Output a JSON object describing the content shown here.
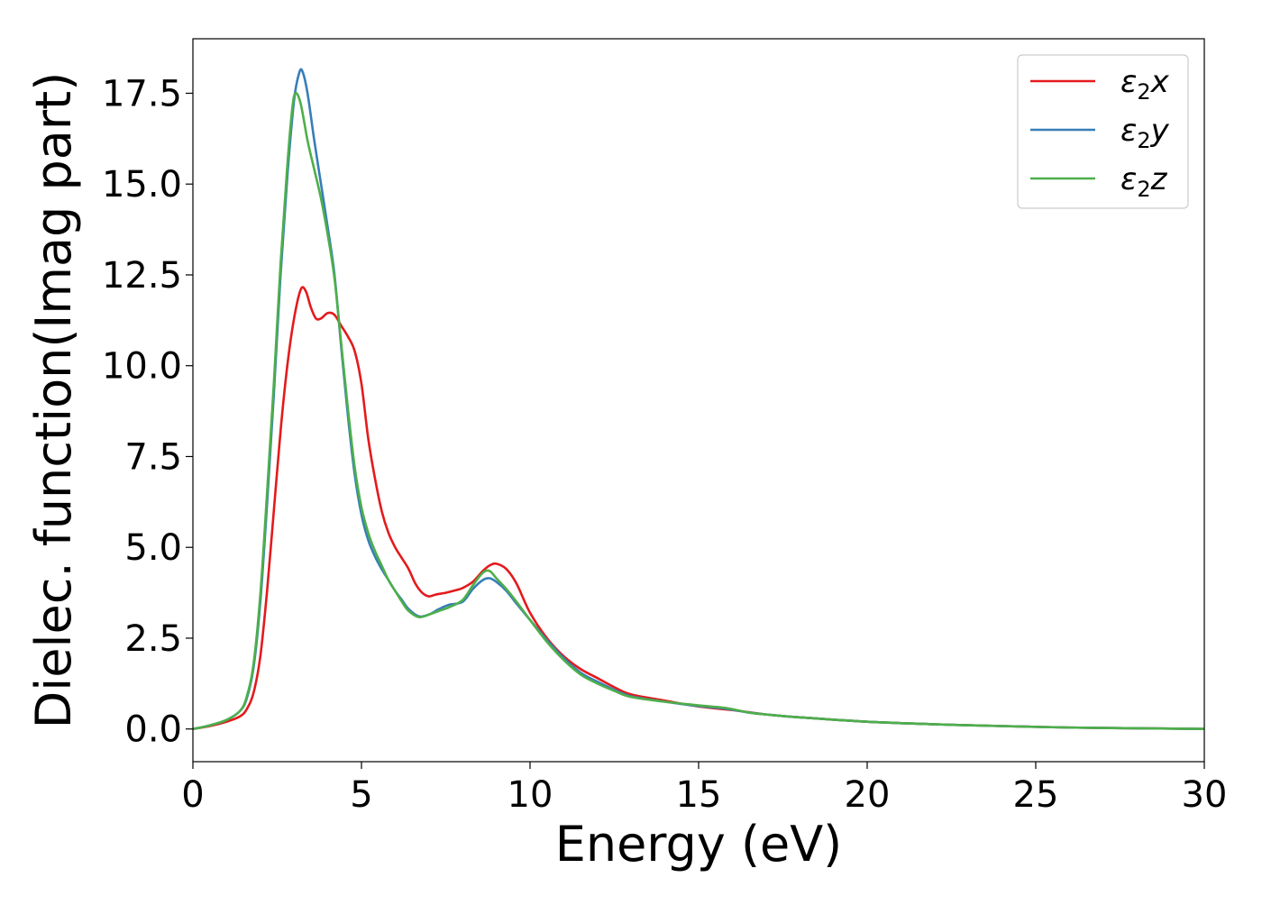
{
  "chart_data": {
    "type": "line",
    "title": "",
    "xlabel": "Energy (eV)",
    "ylabel": "Dielec. function(Imag part)",
    "xlim": [
      0,
      30
    ],
    "ylim": [
      -0.9,
      19.0
    ],
    "xticks": [
      0,
      5,
      10,
      15,
      20,
      25,
      30
    ],
    "xtick_labels": [
      "0",
      "5",
      "10",
      "15",
      "20",
      "25",
      "30"
    ],
    "yticks": [
      0.0,
      2.5,
      5.0,
      7.5,
      10.0,
      12.5,
      15.0,
      17.5
    ],
    "ytick_labels": [
      "0.0",
      "2.5",
      "5.0",
      "7.5",
      "10.0",
      "12.5",
      "15.0",
      "17.5"
    ],
    "grid": false,
    "legend_position": "top-right",
    "series": [
      {
        "name": "ε₂x",
        "label_base": "ε",
        "label_sub": "2",
        "label_suffix": "x",
        "color": "#e41a1c",
        "points": [
          [
            0.0,
            0.0
          ],
          [
            0.5,
            0.08
          ],
          [
            1.0,
            0.2
          ],
          [
            1.4,
            0.35
          ],
          [
            1.6,
            0.55
          ],
          [
            1.8,
            1.0
          ],
          [
            2.0,
            2.0
          ],
          [
            2.2,
            3.8
          ],
          [
            2.4,
            6.0
          ],
          [
            2.6,
            8.2
          ],
          [
            2.8,
            10.0
          ],
          [
            3.0,
            11.3
          ],
          [
            3.2,
            12.1
          ],
          [
            3.35,
            12.05
          ],
          [
            3.5,
            11.6
          ],
          [
            3.65,
            11.3
          ],
          [
            3.8,
            11.3
          ],
          [
            4.0,
            11.45
          ],
          [
            4.2,
            11.4
          ],
          [
            4.4,
            11.1
          ],
          [
            4.6,
            10.8
          ],
          [
            4.8,
            10.4
          ],
          [
            5.0,
            9.5
          ],
          [
            5.2,
            8.0
          ],
          [
            5.4,
            6.9
          ],
          [
            5.6,
            6.0
          ],
          [
            5.8,
            5.4
          ],
          [
            6.0,
            5.0
          ],
          [
            6.2,
            4.7
          ],
          [
            6.4,
            4.4
          ],
          [
            6.6,
            4.0
          ],
          [
            6.8,
            3.75
          ],
          [
            7.0,
            3.65
          ],
          [
            7.2,
            3.7
          ],
          [
            7.5,
            3.75
          ],
          [
            7.8,
            3.82
          ],
          [
            8.0,
            3.88
          ],
          [
            8.3,
            4.05
          ],
          [
            8.6,
            4.35
          ],
          [
            8.8,
            4.5
          ],
          [
            9.0,
            4.55
          ],
          [
            9.3,
            4.4
          ],
          [
            9.6,
            4.0
          ],
          [
            10.0,
            3.2
          ],
          [
            10.5,
            2.5
          ],
          [
            11.0,
            2.0
          ],
          [
            11.5,
            1.65
          ],
          [
            12.0,
            1.4
          ],
          [
            12.5,
            1.15
          ],
          [
            13.0,
            0.95
          ],
          [
            14.0,
            0.78
          ],
          [
            15.0,
            0.62
          ],
          [
            16.0,
            0.52
          ],
          [
            17.0,
            0.4
          ],
          [
            18.0,
            0.32
          ],
          [
            20.0,
            0.2
          ],
          [
            22.0,
            0.13
          ],
          [
            24.0,
            0.08
          ],
          [
            26.0,
            0.04
          ],
          [
            28.0,
            0.02
          ],
          [
            30.0,
            0.0
          ]
        ]
      },
      {
        "name": "ε₂y",
        "label_base": "ε",
        "label_sub": "2",
        "label_suffix": "y",
        "color": "#377eb8",
        "points": [
          [
            0.0,
            0.0
          ],
          [
            0.5,
            0.1
          ],
          [
            1.0,
            0.25
          ],
          [
            1.4,
            0.5
          ],
          [
            1.6,
            0.85
          ],
          [
            1.8,
            1.7
          ],
          [
            2.0,
            3.5
          ],
          [
            2.2,
            6.2
          ],
          [
            2.4,
            9.2
          ],
          [
            2.6,
            12.5
          ],
          [
            2.8,
            15.2
          ],
          [
            3.0,
            17.3
          ],
          [
            3.15,
            18.05
          ],
          [
            3.25,
            18.1
          ],
          [
            3.4,
            17.5
          ],
          [
            3.6,
            16.2
          ],
          [
            3.8,
            15.0
          ],
          [
            4.0,
            13.8
          ],
          [
            4.2,
            12.5
          ],
          [
            4.4,
            10.5
          ],
          [
            4.6,
            8.6
          ],
          [
            4.8,
            7.0
          ],
          [
            5.0,
            5.9
          ],
          [
            5.2,
            5.2
          ],
          [
            5.4,
            4.75
          ],
          [
            5.6,
            4.4
          ],
          [
            5.8,
            4.1
          ],
          [
            6.0,
            3.8
          ],
          [
            6.2,
            3.55
          ],
          [
            6.4,
            3.3
          ],
          [
            6.7,
            3.1
          ],
          [
            7.0,
            3.15
          ],
          [
            7.3,
            3.3
          ],
          [
            7.6,
            3.42
          ],
          [
            8.0,
            3.5
          ],
          [
            8.3,
            3.85
          ],
          [
            8.6,
            4.1
          ],
          [
            8.8,
            4.15
          ],
          [
            9.0,
            4.05
          ],
          [
            9.3,
            3.8
          ],
          [
            9.6,
            3.45
          ],
          [
            10.0,
            3.0
          ],
          [
            10.5,
            2.45
          ],
          [
            11.0,
            1.95
          ],
          [
            11.5,
            1.55
          ],
          [
            12.0,
            1.3
          ],
          [
            12.5,
            1.08
          ],
          [
            13.0,
            0.9
          ],
          [
            14.0,
            0.75
          ],
          [
            15.0,
            0.63
          ],
          [
            15.8,
            0.56
          ],
          [
            16.5,
            0.45
          ],
          [
            17.0,
            0.4
          ],
          [
            18.0,
            0.32
          ],
          [
            20.0,
            0.2
          ],
          [
            22.0,
            0.13
          ],
          [
            24.0,
            0.08
          ],
          [
            26.0,
            0.04
          ],
          [
            28.0,
            0.02
          ],
          [
            30.0,
            0.0
          ]
        ]
      },
      {
        "name": "ε₂z",
        "label_base": "ε",
        "label_sub": "2",
        "label_suffix": "z",
        "color": "#4daf4a",
        "points": [
          [
            0.0,
            0.0
          ],
          [
            0.5,
            0.1
          ],
          [
            1.0,
            0.25
          ],
          [
            1.4,
            0.5
          ],
          [
            1.6,
            0.9
          ],
          [
            1.8,
            1.8
          ],
          [
            2.0,
            3.7
          ],
          [
            2.2,
            6.5
          ],
          [
            2.4,
            9.5
          ],
          [
            2.6,
            12.8
          ],
          [
            2.8,
            15.5
          ],
          [
            2.95,
            17.1
          ],
          [
            3.05,
            17.5
          ],
          [
            3.2,
            17.2
          ],
          [
            3.4,
            16.2
          ],
          [
            3.6,
            15.4
          ],
          [
            3.8,
            14.6
          ],
          [
            4.0,
            13.6
          ],
          [
            4.2,
            12.4
          ],
          [
            4.4,
            10.6
          ],
          [
            4.6,
            8.8
          ],
          [
            4.8,
            7.2
          ],
          [
            5.0,
            6.1
          ],
          [
            5.2,
            5.4
          ],
          [
            5.4,
            4.9
          ],
          [
            5.6,
            4.5
          ],
          [
            5.8,
            4.1
          ],
          [
            6.0,
            3.8
          ],
          [
            6.2,
            3.5
          ],
          [
            6.4,
            3.25
          ],
          [
            6.7,
            3.08
          ],
          [
            7.0,
            3.15
          ],
          [
            7.3,
            3.25
          ],
          [
            7.6,
            3.35
          ],
          [
            8.0,
            3.55
          ],
          [
            8.3,
            3.95
          ],
          [
            8.6,
            4.3
          ],
          [
            8.8,
            4.35
          ],
          [
            9.0,
            4.15
          ],
          [
            9.3,
            3.85
          ],
          [
            9.6,
            3.5
          ],
          [
            10.0,
            3.0
          ],
          [
            10.5,
            2.4
          ],
          [
            11.0,
            1.9
          ],
          [
            11.5,
            1.5
          ],
          [
            12.0,
            1.25
          ],
          [
            12.5,
            1.05
          ],
          [
            13.0,
            0.88
          ],
          [
            14.0,
            0.75
          ],
          [
            15.0,
            0.65
          ],
          [
            15.8,
            0.58
          ],
          [
            16.5,
            0.45
          ],
          [
            17.0,
            0.4
          ],
          [
            18.0,
            0.32
          ],
          [
            20.0,
            0.2
          ],
          [
            22.0,
            0.13
          ],
          [
            24.0,
            0.08
          ],
          [
            26.0,
            0.04
          ],
          [
            28.0,
            0.02
          ],
          [
            30.0,
            0.0
          ]
        ]
      }
    ]
  }
}
